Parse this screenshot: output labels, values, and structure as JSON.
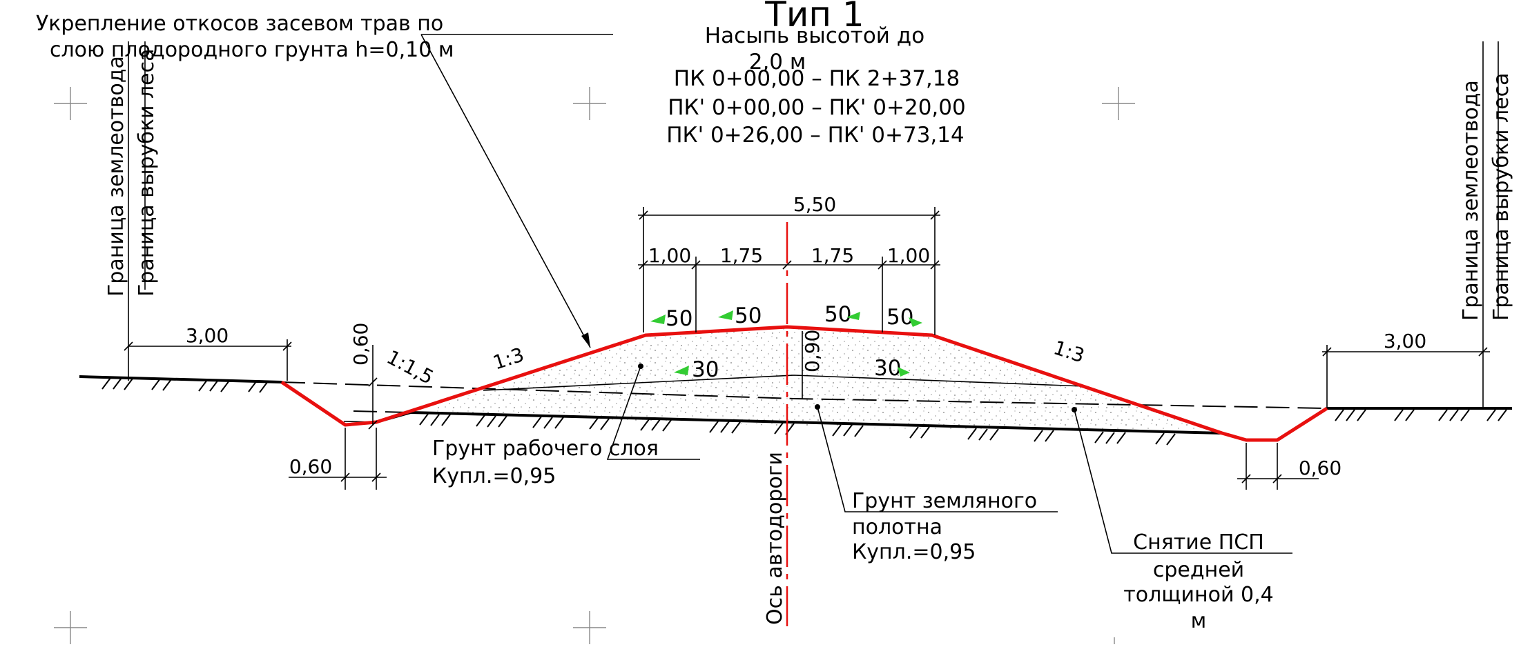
{
  "title": "Тип 1",
  "subtitle_line1": "Насыпь высотой до",
  "subtitle_line2": "2,0 м",
  "pk_ranges": [
    "ПК 0+00,00 – ПК 2+37,18",
    "ПК' 0+00,00 – ПК' 0+20,00",
    "ПК' 0+26,00 – ПК' 0+73,14"
  ],
  "note_slope_line1": "Укрепление откосов засевом трав по",
  "note_slope_line2": "слою плодородного грунта h=0,10 м",
  "left_boundaries": {
    "land_allotment": "Граница землеотвода",
    "forest_cutting": "Граница вырубки леса"
  },
  "right_boundaries": {
    "land_allotment": "Граница землеотвода",
    "forest_cutting": "Граница вырубки леса"
  },
  "axis_label": "Ось автодороги",
  "dimensions": {
    "top_total": "5,50",
    "shoulder_left": "1,00",
    "lane_left": "1,75",
    "lane_right": "1,75",
    "shoulder_right": "1,00",
    "left_offset": "3,00",
    "right_offset": "3,00",
    "ditch_depth": "0,60",
    "left_ditch_bottom": "0,60",
    "right_ditch_bottom": "0,60",
    "center_height": "0,90"
  },
  "slopes": {
    "left_ditch": "1:1,5",
    "left_embankment": "1:3",
    "right_embankment": "1:3"
  },
  "crossfalls": {
    "top_left_shoulder": "50",
    "top_left_lane": "50",
    "top_right_lane": "50",
    "top_right_shoulder": "50",
    "layer_left": "30",
    "layer_right": "30"
  },
  "callouts": {
    "working_layer_line1": "Грунт рабочего слоя",
    "working_layer_line2": "Купл.=0,95",
    "subgrade_line1": "Грунт земляного",
    "subgrade_line2": "полотна",
    "subgrade_line3": "Купл.=0,95",
    "topsoil_line1": "Снятие ПСП",
    "topsoil_line2": "средней",
    "topsoil_line3": "толщиной 0,4",
    "topsoil_line4": "м"
  },
  "colors": {
    "embankment_outline": "#e8100f",
    "crossfall_arrows": "#33cc33",
    "linework": "#000000"
  }
}
